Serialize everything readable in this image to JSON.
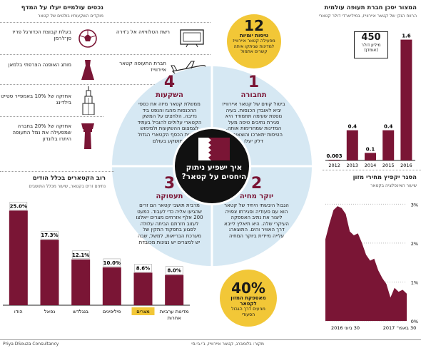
{
  "left_panel": {
    "title": "נכסים עולמיים יעלו על המדף",
    "subtitle": "מוקדים השקעותיו בולטים של קטאר",
    "items": [
      {
        "icon": "building-tv-icon",
        "text": "רשת הטלוויזיה אל ג'זירה"
      },
      {
        "icon": "soccer-ball-icon",
        "text": "בעלת קבוצת הכדורגל פריז סן־ז'רמן"
      },
      {
        "icon": "airplane-icon",
        "text": "חברת התעופה קטאר איירווייז"
      },
      {
        "icon": "dress-icon",
        "text": "מותג האופנה הצרפתי בלמאן"
      },
      {
        "icon": "skyscraper-icon",
        "text": "אחזקה של 10% באמפייר סטייט בילדינג"
      },
      {
        "icon": "control-tower-icon",
        "text": "אחזקה של 20% בחברה שמפעילה את נמל התעופה היתרו בלונדון"
      }
    ]
  },
  "top_chart": {
    "title": "המצור יסכן חברת תעופה עולמית",
    "subtitle": "הרווח הנקי של קטאר איירווייז, במיליארדי דולר קטארי",
    "badge_value": "450",
    "badge_text": "מיליון דולר (אומדן)"
  },
  "bottom_chart": {
    "title": "הסגר יקפיץ מחירי מזון",
    "subtitle": "שיעור האינפלציה בקטאר",
    "y_ticks": [
      "3%",
      "2%",
      "1%",
      "0%"
    ],
    "x_labels": [
      "30 ביוני 2016",
      "30 באפר' 2017"
    ]
  },
  "workers_chart": {
    "title": "רוב הקטארים בכלל הודים",
    "subtitle": "נתינים זרים בקטאר, שיעור מכלל התושבים"
  },
  "center": {
    "title": "איך ישפיע ניתוק היחסים על קטאר?"
  },
  "sections": [
    {
      "num": "1",
      "title": "תחבורה",
      "body": "ביטול קווים של קטאר איירווייז יביא לאובדן הכנסות. בעיה נוספת שעימה תתמודד היא סגירת נתיבים טיסה מעל המדינות שמחרימות אותה. הטיסות יתארכו והוצאות על דלק יעלו"
    },
    {
      "num": "2",
      "title": "יוקר מחיה",
      "body": "הגבול היבשתי היחיד של קטאר הוא עם סעודיה וסגירתו צפויה ליצור את נתיב האספקה העיקרי שלה. היא תיאלץ לייבא דרך האוויר והים. התוצאה: עלייה מיידית ביוקר המחיה"
    },
    {
      "num": "3",
      "title": "תעסוקה",
      "body": "מרבית תושבי קטאר הם זרים שהגיעו אליה כדי לעבוד. כמעט 200 אלף אזרחים מצרים ייאלצו לעזוב חזרתם הביתה עלולה לפגוע בתפקוד התקין של מערכת הבריאות, למשל, שבה יש למצרים יש נציגות מכובדת"
    },
    {
      "num": "4",
      "title": "השקעות",
      "body": "ממשלת קטאר מיזה את כספי ההכנסות מהגז והנפט ביד נדיבה. הלחצים על המשק הקטארי עלולים להוביל בעתיד לצמצום ההשקעות ולמימוש אחזקות הכסף הקטארי הגדול שמושקע בעולם"
    }
  ],
  "callouts": {
    "top": {
      "value": "12",
      "label": "טיסות יומיות",
      "text": "מפעילה קטאר איירווייז למדינות שניתקו איתה קשרים אתמול"
    },
    "bottom": {
      "value": "40%",
      "label": "מאספקת המזון לקטאר",
      "text": "מגיעים דרך הגבול הסעודי"
    }
  },
  "footer": {
    "source": "מקור: בלומברג, קטאר איירווייז, ג'י.בי.סי",
    "credit": "Priya DSouza Consultancy"
  },
  "chart_data": [
    {
      "type": "bar",
      "title": "המצור יסכן חברת תעופה עולמית",
      "categories": [
        "2012",
        "2013",
        "2014",
        "2015",
        "2016"
      ],
      "values": [
        0.003,
        0.4,
        0.1,
        0.4,
        1.6
      ],
      "value_labels": [
        "0.003",
        "0.4",
        "0.1",
        "0.4",
        "1.6"
      ],
      "ylim": [
        0,
        1.7
      ]
    },
    {
      "type": "bar",
      "title": "רוב הקטארים בכלל הודים",
      "categories": [
        "הודו",
        "נפאל",
        "בנגלדש",
        "פיליפינים",
        "מצרים",
        "מדינות ערביות אחרות"
      ],
      "values": [
        25.0,
        17.3,
        12.1,
        10.0,
        8.6,
        8.0
      ],
      "value_labels": [
        "25.0%",
        "17.3%",
        "12.1%",
        "10.0%",
        "8.6%",
        "8.0%"
      ],
      "ylim": [
        0,
        26
      ]
    },
    {
      "type": "area",
      "title": "הסגר יקפיץ מחירי מזון",
      "ylabel": "",
      "ylim": [
        0,
        3.3
      ],
      "y_ticks": [
        0,
        1,
        2,
        3
      ],
      "values": [
        2.1,
        2.5,
        2.85,
        2.95,
        2.9,
        2.75,
        2.3,
        2.2,
        2.25,
        2.0,
        1.7,
        1.55,
        1.6,
        1.3,
        1.1,
        0.95,
        0.6,
        0.85,
        0.75,
        0.8,
        0.7
      ]
    }
  ]
}
